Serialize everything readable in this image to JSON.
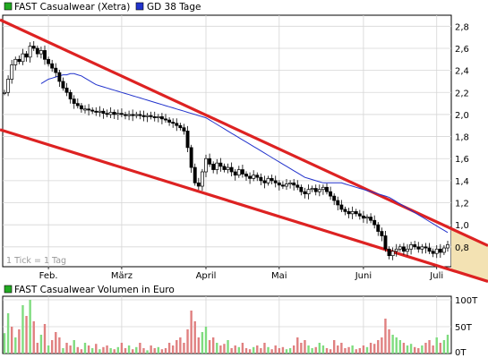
{
  "price_chart": {
    "legend": [
      {
        "label": "FAST Casualwear (Xetra)",
        "color": "#22aa22"
      },
      {
        "label": "GD 38 Tage",
        "color": "#2233cc"
      }
    ],
    "tick_note": "1 Tick = 1 Tag"
  },
  "volume_chart": {
    "legend": [
      {
        "label": "FAST Casualwear Volumen in Euro",
        "color": "#22aa22"
      }
    ]
  },
  "colors": {
    "candle": "#000000",
    "ma": "#2233cc",
    "channel": "#dd2222",
    "projection": "#f3e2b3",
    "grid": "#d6d6d6",
    "vol_up": "#7fdc7f",
    "vol_down": "#e08080"
  },
  "chart_data": [
    {
      "type": "line",
      "title": "FAST Casualwear (Xetra)",
      "xlabel": "",
      "ylabel": "",
      "x_tick_labels": [
        "Feb.",
        "März",
        "April",
        "Mai",
        "Juni",
        "Juli"
      ],
      "y_ticks": [
        0.8,
        1.0,
        1.2,
        1.4,
        1.6,
        1.8,
        2.0,
        2.2,
        2.4,
        2.6,
        2.8
      ],
      "ylim": [
        0.62,
        2.9
      ],
      "days": 122,
      "grid": true,
      "legend_position": "top-left",
      "series": [
        {
          "name": "FAST Casualwear (Xetra)",
          "values": [
            2.2,
            2.32,
            2.45,
            2.5,
            2.48,
            2.55,
            2.52,
            2.62,
            2.6,
            2.55,
            2.58,
            2.5,
            2.46,
            2.42,
            2.38,
            2.3,
            2.24,
            2.2,
            2.14,
            2.1,
            2.08,
            2.05,
            2.05,
            2.04,
            2.03,
            2.02,
            2.03,
            2.01,
            2.0,
            2.02,
            2.0,
            2.01,
            2.0,
            1.99,
            2.0,
            1.99,
            2.0,
            1.99,
            1.98,
            1.99,
            1.98,
            1.97,
            1.98,
            1.96,
            1.95,
            1.93,
            1.92,
            1.9,
            1.88,
            1.85,
            1.7,
            1.52,
            1.38,
            1.35,
            1.48,
            1.6,
            1.55,
            1.5,
            1.56,
            1.53,
            1.5,
            1.52,
            1.48,
            1.45,
            1.5,
            1.46,
            1.44,
            1.42,
            1.45,
            1.43,
            1.4,
            1.38,
            1.42,
            1.4,
            1.38,
            1.36,
            1.35,
            1.37,
            1.38,
            1.36,
            1.34,
            1.3,
            1.28,
            1.32,
            1.33,
            1.3,
            1.32,
            1.34,
            1.3,
            1.26,
            1.22,
            1.18,
            1.14,
            1.12,
            1.1,
            1.12,
            1.1,
            1.08,
            1.06,
            1.07,
            1.04,
            1.0,
            0.94,
            0.9,
            0.78,
            0.72,
            0.76,
            0.78,
            0.8,
            0.76,
            0.78,
            0.82,
            0.8,
            0.78,
            0.8,
            0.79,
            0.76,
            0.74,
            0.78,
            0.75,
            0.79,
            0.82
          ]
        },
        {
          "name": "GD 38 Tage",
          "values": [
            2.28,
            2.3,
            2.32,
            2.33,
            2.34,
            2.35,
            2.36,
            2.36,
            2.37,
            2.37,
            2.36,
            2.35,
            2.33,
            2.31,
            2.29,
            2.27,
            2.26,
            2.25,
            2.24,
            2.23,
            2.22,
            2.21,
            2.2,
            2.19,
            2.18,
            2.17,
            2.16,
            2.15,
            2.14,
            2.13,
            2.12,
            2.11,
            2.1,
            2.09,
            2.08,
            2.07,
            2.06,
            2.05,
            2.04,
            2.03,
            2.02,
            2.01,
            2.0,
            1.99,
            1.98,
            1.97,
            1.95,
            1.93,
            1.91,
            1.89,
            1.87,
            1.85,
            1.83,
            1.81,
            1.79,
            1.77,
            1.75,
            1.73,
            1.71,
            1.69,
            1.67,
            1.65,
            1.63,
            1.61,
            1.59,
            1.57,
            1.55,
            1.53,
            1.51,
            1.49,
            1.47,
            1.45,
            1.43,
            1.42,
            1.41,
            1.4,
            1.39,
            1.38,
            1.38,
            1.38,
            1.38,
            1.38,
            1.38,
            1.37,
            1.36,
            1.35,
            1.34,
            1.33,
            1.32,
            1.31,
            1.3,
            1.29,
            1.28,
            1.27,
            1.26,
            1.25,
            1.23,
            1.21,
            1.19,
            1.17,
            1.15,
            1.13,
            1.11,
            1.09,
            1.07,
            1.05,
            1.03,
            1.01,
            0.99,
            0.97,
            0.95,
            0.93
          ]
        }
      ],
      "trend_channel": {
        "upper_start": 2.84,
        "upper_end": 0.98,
        "lower_start": 1.85,
        "lower_end": 0.6
      }
    },
    {
      "type": "bar",
      "title": "FAST Casualwear Volumen in Euro",
      "y_tick_labels": [
        "0T",
        "50T",
        "100T"
      ],
      "ylim": [
        0,
        100
      ],
      "grid": true,
      "legend_position": "top-left",
      "values": [
        38,
        75,
        50,
        30,
        45,
        90,
        70,
        100,
        60,
        20,
        35,
        55,
        15,
        25,
        40,
        30,
        10,
        20,
        15,
        25,
        12,
        8,
        20,
        15,
        10,
        18,
        8,
        12,
        15,
        10,
        8,
        12,
        20,
        10,
        15,
        8,
        12,
        20,
        10,
        6,
        15,
        10,
        12,
        8,
        10,
        20,
        15,
        25,
        30,
        20,
        45,
        80,
        60,
        30,
        40,
        50,
        25,
        30,
        20,
        15,
        18,
        25,
        10,
        15,
        12,
        20,
        10,
        8,
        12,
        15,
        10,
        20,
        12,
        8,
        15,
        10,
        12,
        8,
        10,
        15,
        30,
        20,
        25,
        15,
        10,
        12,
        20,
        15,
        10,
        8,
        25,
        15,
        20,
        10,
        12,
        15,
        8,
        10,
        15,
        12,
        20,
        18,
        25,
        30,
        65,
        45,
        35,
        30,
        25,
        20,
        15,
        18,
        12,
        10,
        15,
        20,
        25,
        15,
        30,
        20,
        25,
        35
      ],
      "up": [
        1,
        1,
        0,
        1,
        0,
        1,
        0,
        1,
        0,
        0,
        1,
        0,
        1,
        0,
        0,
        0,
        1,
        0,
        0,
        1,
        0,
        0,
        1,
        0,
        1,
        0,
        1,
        0,
        0,
        1,
        0,
        1,
        0,
        0,
        1,
        0,
        1,
        0,
        0,
        1,
        0,
        0,
        1,
        0,
        0,
        0,
        0,
        0,
        0,
        0,
        0,
        0,
        0,
        0,
        1,
        1,
        0,
        0,
        1,
        0,
        0,
        1,
        0,
        0,
        1,
        0,
        0,
        0,
        1,
        0,
        0,
        0,
        1,
        0,
        0,
        0,
        0,
        1,
        1,
        0,
        0,
        0,
        0,
        1,
        1,
        0,
        1,
        1,
        0,
        0,
        0,
        0,
        0,
        0,
        0,
        1,
        0,
        0,
        0,
        1,
        0,
        0,
        0,
        0,
        0,
        0,
        1,
        1,
        1,
        0,
        1,
        1,
        0,
        0,
        1,
        0,
        0,
        0,
        1,
        0,
        1,
        1
      ]
    }
  ]
}
